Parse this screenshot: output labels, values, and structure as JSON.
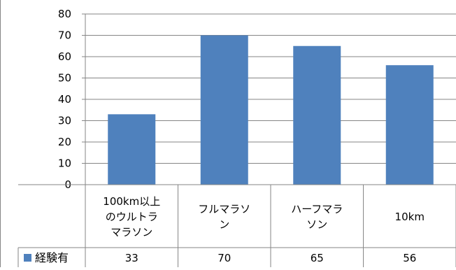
{
  "chart_data": {
    "type": "bar",
    "categories": [
      "100km以上\nのウルトラ\nマラソン",
      "フルマラソ\nン",
      "ハーフマラ\nソン",
      "10km"
    ],
    "series": [
      {
        "name": "経験有",
        "values": [
          33,
          70,
          65,
          56
        ],
        "color": "#4F81BD"
      }
    ],
    "ylim": [
      0,
      80
    ],
    "yticks": [
      0,
      10,
      20,
      30,
      40,
      50,
      60,
      70,
      80
    ],
    "grid": true,
    "title": "",
    "xlabel": "",
    "ylabel": "",
    "legend": "data-table-left"
  }
}
